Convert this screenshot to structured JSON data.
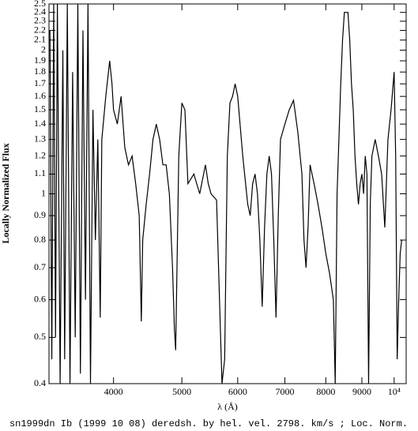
{
  "chart_data": {
    "type": "line",
    "title": "sn1999dn Ib (1999 10 08) deredsh. by hel. vel.  2798. km/s ;  Loc. Norm.",
    "x_label": "λ (Å)",
    "y_label": "Locally Normalized Flux",
    "xscale": "log",
    "yscale": "log",
    "color": "#000000",
    "xlim": [
      3240,
      10400
    ],
    "ylim": [
      0.4,
      2.5
    ],
    "xticks": [
      4000,
      5000,
      6000,
      7000,
      8000,
      9000,
      {
        "value": 10000,
        "label": "10⁴"
      }
    ],
    "yticks": [
      0.4,
      0.5,
      0.6,
      0.7,
      0.8,
      0.9,
      1,
      1.1,
      1.2,
      1.3,
      1.4,
      1.5,
      1.6,
      1.7,
      1.8,
      1.9,
      2,
      2.1,
      2.2,
      2.3,
      2.4,
      2.5
    ],
    "x": [
      3250,
      3270,
      3290,
      3310,
      3330,
      3360,
      3390,
      3410,
      3440,
      3470,
      3500,
      3530,
      3560,
      3590,
      3620,
      3650,
      3680,
      3710,
      3740,
      3770,
      3800,
      3830,
      3850,
      3900,
      3950,
      3980,
      4000,
      4050,
      4100,
      4150,
      4200,
      4250,
      4300,
      4350,
      4380,
      4400,
      4450,
      4500,
      4550,
      4600,
      4650,
      4700,
      4750,
      4800,
      4850,
      4880,
      4900,
      4950,
      5000,
      5050,
      5100,
      5200,
      5300,
      5400,
      5450,
      5500,
      5600,
      5700,
      5750,
      5800,
      5850,
      5900,
      5950,
      6000,
      6100,
      6200,
      6250,
      6300,
      6350,
      6400,
      6450,
      6500,
      6550,
      6600,
      6650,
      6700,
      6750,
      6800,
      6850,
      6900,
      7000,
      7100,
      7200,
      7300,
      7400,
      7450,
      7500,
      7550,
      7600,
      7700,
      7800,
      7900,
      8000,
      8100,
      8200,
      8250,
      8300,
      8350,
      8400,
      8450,
      8500,
      8600,
      8650,
      8700,
      8750,
      8800,
      8850,
      8900,
      8950,
      9000,
      9050,
      9100,
      9150,
      9200,
      9250,
      9300,
      9400,
      9500,
      9600,
      9700,
      9800,
      9900,
      10000,
      10050,
      10100,
      10150,
      10200,
      10250
    ],
    "series": [
      {
        "name": "sn1999dn",
        "values": [
          2.2,
          0.45,
          2.5,
          0.5,
          2.5,
          0.4,
          2.0,
          0.45,
          2.5,
          0.4,
          1.8,
          0.5,
          2.5,
          0.42,
          2.2,
          0.6,
          2.5,
          0.4,
          1.5,
          0.8,
          1.3,
          0.55,
          1.3,
          1.6,
          1.9,
          1.7,
          1.5,
          1.4,
          1.6,
          1.25,
          1.15,
          1.2,
          1.05,
          0.9,
          0.54,
          0.8,
          0.95,
          1.1,
          1.3,
          1.4,
          1.3,
          1.15,
          1.15,
          1.0,
          0.7,
          0.52,
          0.47,
          1.2,
          1.55,
          1.5,
          1.05,
          1.1,
          1.0,
          1.15,
          1.05,
          1.0,
          0.97,
          0.4,
          0.45,
          1.2,
          1.55,
          1.6,
          1.7,
          1.6,
          1.2,
          0.95,
          0.9,
          1.05,
          1.1,
          1.0,
          0.8,
          0.58,
          0.85,
          1.1,
          1.2,
          1.1,
          0.8,
          0.55,
          0.9,
          1.3,
          1.4,
          1.5,
          1.57,
          1.35,
          1.1,
          0.8,
          0.7,
          0.85,
          1.15,
          1.05,
          0.95,
          0.85,
          0.75,
          0.68,
          0.6,
          0.4,
          1.0,
          1.3,
          1.7,
          2.1,
          2.4,
          2.4,
          2.1,
          1.7,
          1.5,
          1.2,
          1.05,
          0.95,
          1.05,
          1.1,
          1.0,
          1.2,
          1.1,
          0.4,
          0.95,
          1.2,
          1.3,
          1.2,
          1.1,
          0.85,
          1.3,
          1.5,
          1.8,
          1.2,
          0.45,
          0.6,
          0.75,
          0.8
        ]
      }
    ]
  }
}
